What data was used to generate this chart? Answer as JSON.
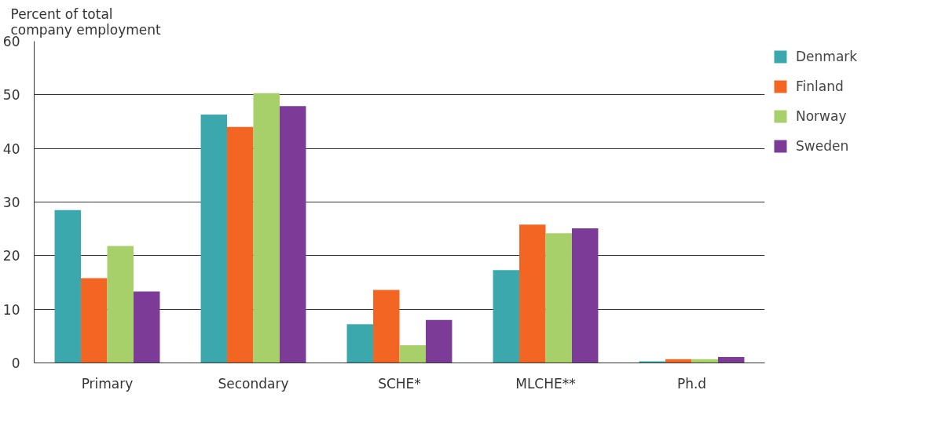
{
  "chart_data": {
    "type": "bar",
    "ylabel": "Percent of total company employment",
    "categories": [
      "Primary",
      "Secondary",
      "SCHE*",
      "MLCHE**",
      "Ph.d"
    ],
    "series": [
      {
        "name": "Denmark",
        "color": "#3aa8ad",
        "values": [
          28.5,
          46.3,
          7.2,
          17.3,
          0.3
        ]
      },
      {
        "name": "Finland",
        "color": "#f26522",
        "values": [
          15.8,
          44.0,
          13.6,
          25.8,
          0.7
        ]
      },
      {
        "name": "Norway",
        "color": "#a8d06a",
        "values": [
          21.8,
          50.3,
          3.3,
          24.2,
          0.7
        ]
      },
      {
        "name": "Sweden",
        "color": "#7b3b96",
        "values": [
          13.3,
          47.9,
          8.0,
          25.1,
          1.1
        ]
      }
    ],
    "ylim": [
      0,
      60
    ],
    "yticks": [
      0,
      10,
      20,
      30,
      40,
      50,
      60
    ],
    "grid": "y",
    "legend": "right"
  }
}
